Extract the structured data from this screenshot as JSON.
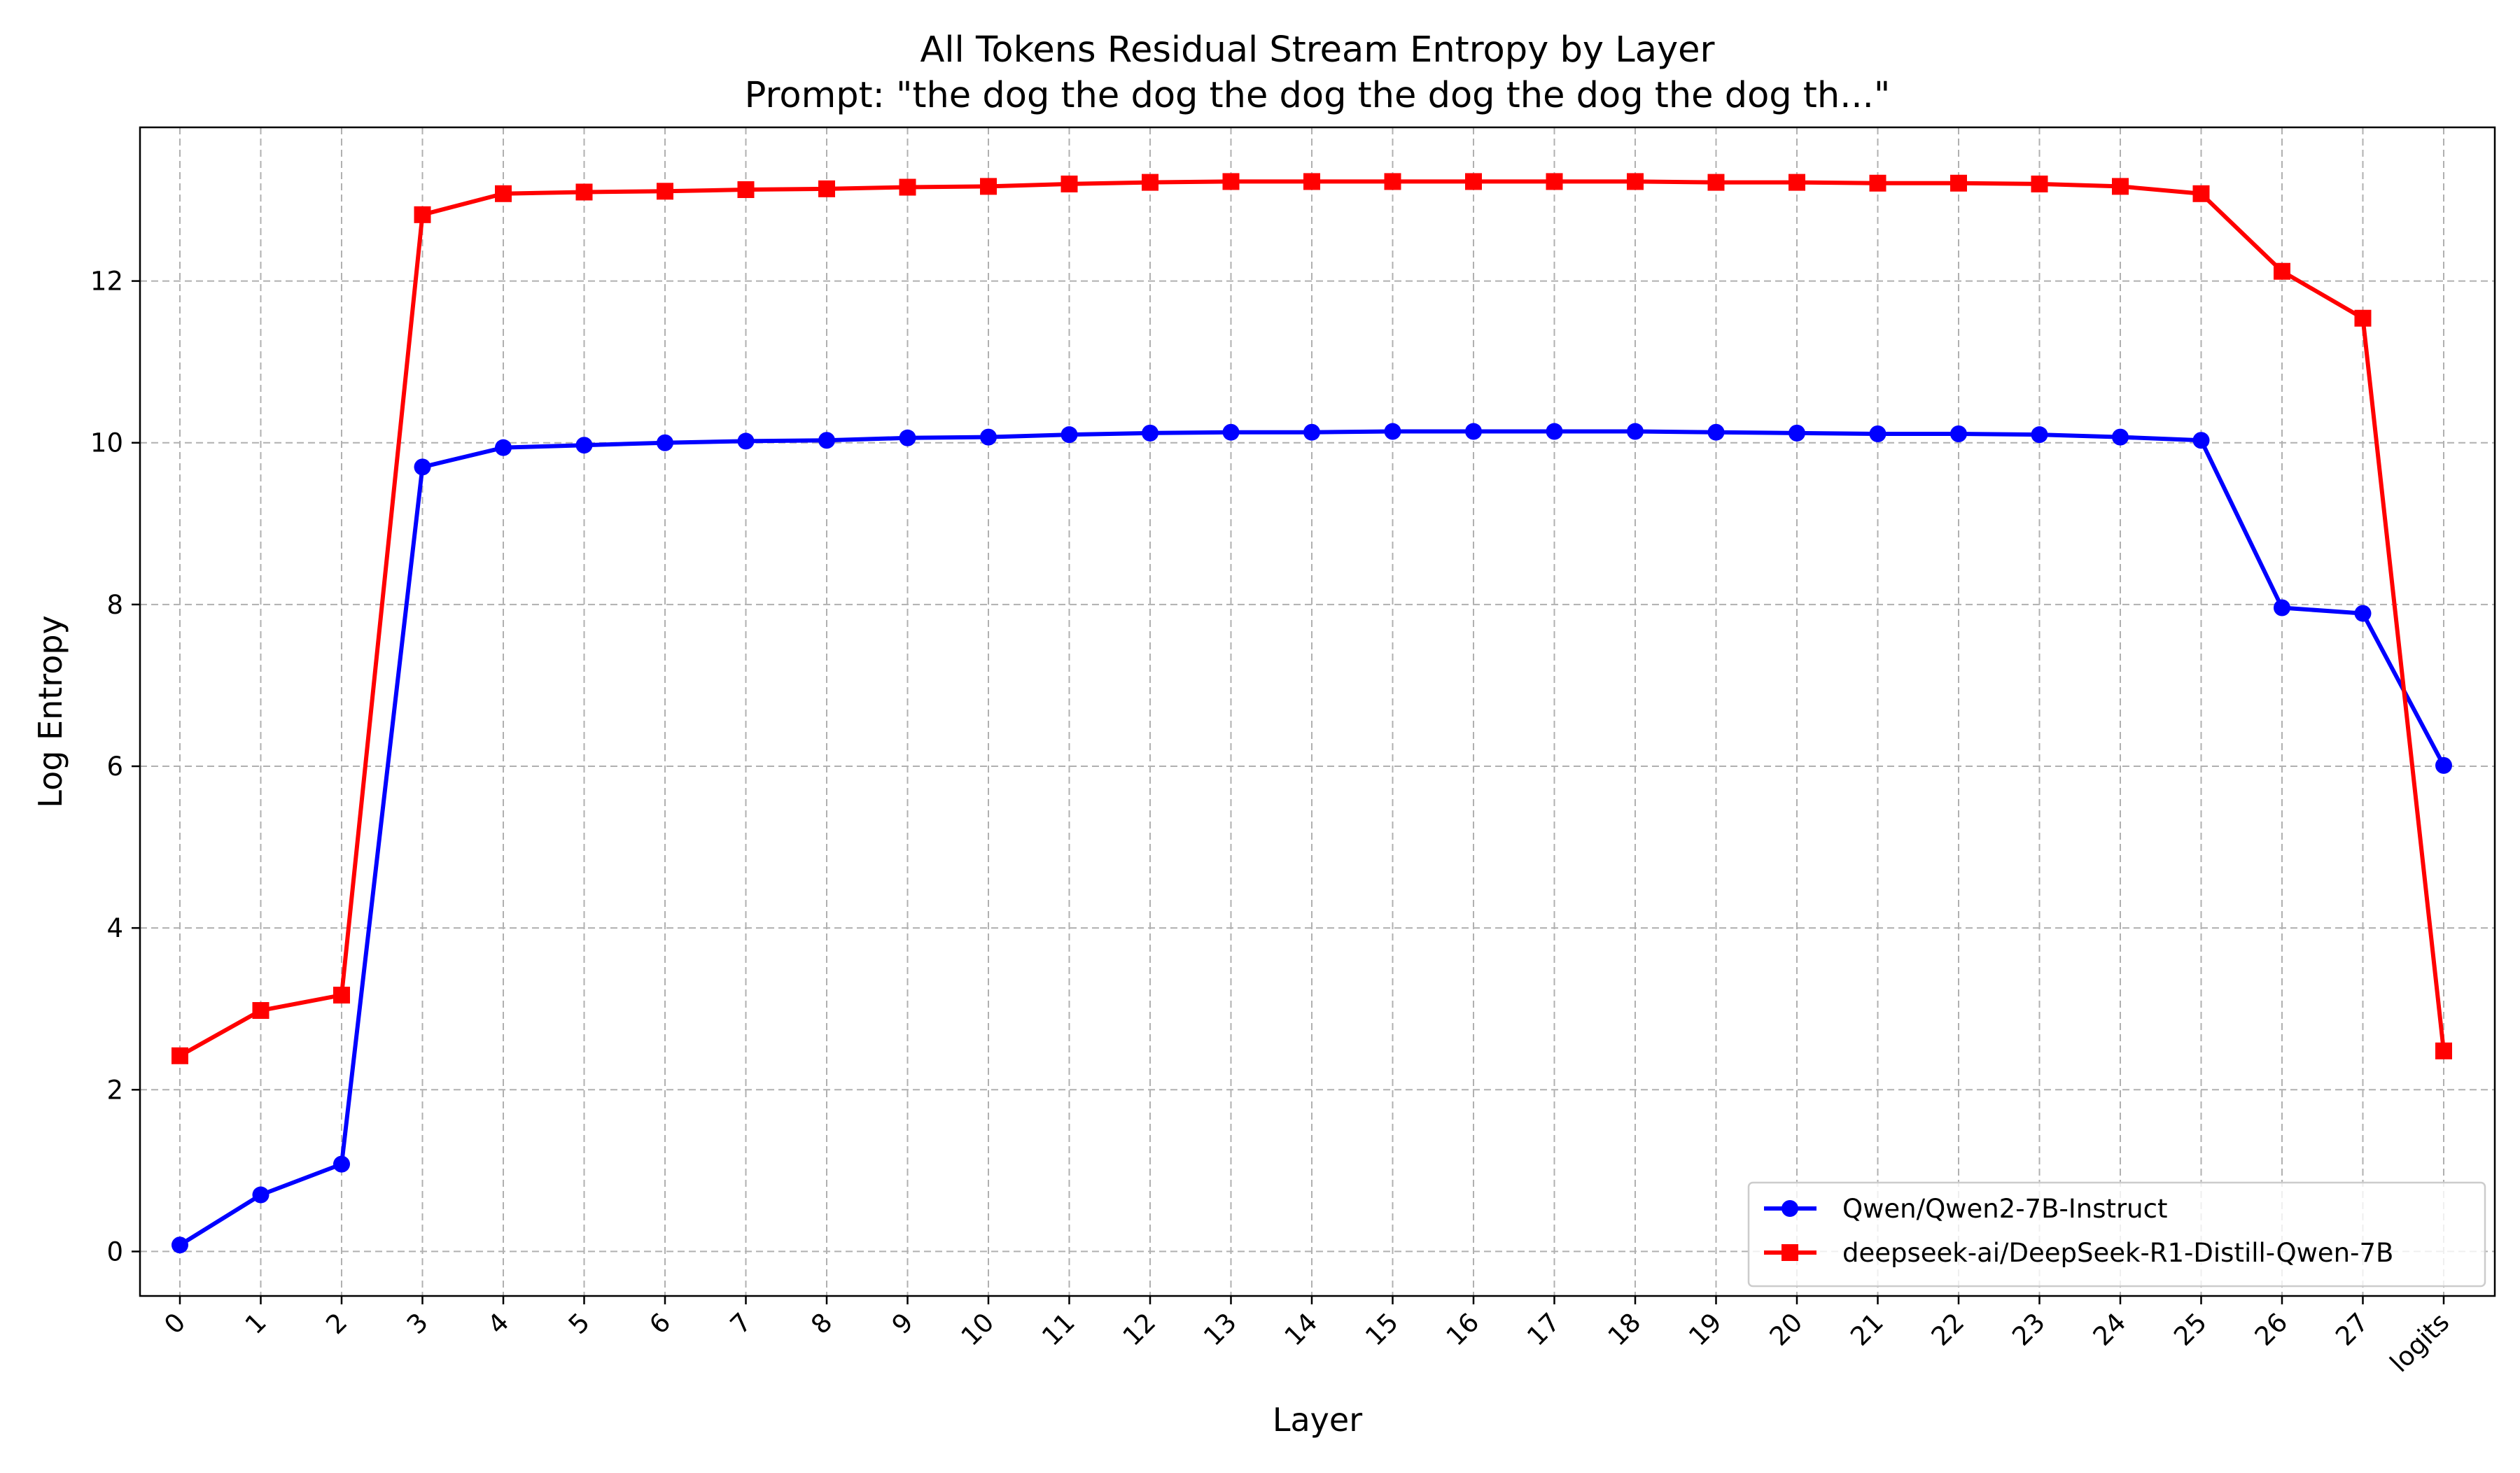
{
  "chart_data": {
    "type": "line",
    "title": "All Tokens Residual Stream Entropy by Layer",
    "subtitle": "Prompt: \"the dog the dog the dog the dog the dog the dog th...\"",
    "xlabel": "Layer",
    "ylabel": "Log Entropy",
    "categories": [
      "0",
      "1",
      "2",
      "3",
      "4",
      "5",
      "6",
      "7",
      "8",
      "9",
      "10",
      "11",
      "12",
      "13",
      "14",
      "15",
      "16",
      "17",
      "18",
      "19",
      "20",
      "21",
      "22",
      "23",
      "24",
      "25",
      "26",
      "27",
      "logits"
    ],
    "ylim": [
      -0.55,
      13.9
    ],
    "yticks": [
      0,
      2,
      4,
      6,
      8,
      10,
      12
    ],
    "grid": true,
    "legend_position": "lower-right",
    "series": [
      {
        "name": "Qwen/Qwen2-7B-Instruct",
        "color": "#0000ff",
        "marker": "circle",
        "values": [
          0.08,
          0.7,
          1.08,
          9.7,
          9.94,
          9.97,
          10.0,
          10.02,
          10.03,
          10.06,
          10.07,
          10.1,
          10.12,
          10.13,
          10.13,
          10.14,
          10.14,
          10.14,
          10.14,
          10.13,
          10.12,
          10.11,
          10.11,
          10.1,
          10.07,
          10.03,
          7.96,
          7.89,
          6.01
        ]
      },
      {
        "name": "deepseek-ai/DeepSeek-R1-Distill-Qwen-7B",
        "color": "#ff0000",
        "marker": "square",
        "values": [
          2.42,
          2.98,
          3.17,
          12.82,
          13.08,
          13.1,
          13.11,
          13.13,
          13.14,
          13.16,
          13.17,
          13.2,
          13.22,
          13.23,
          13.23,
          13.23,
          13.23,
          13.23,
          13.23,
          13.22,
          13.22,
          13.21,
          13.21,
          13.2,
          13.17,
          13.08,
          12.12,
          11.54,
          2.48
        ]
      }
    ]
  }
}
